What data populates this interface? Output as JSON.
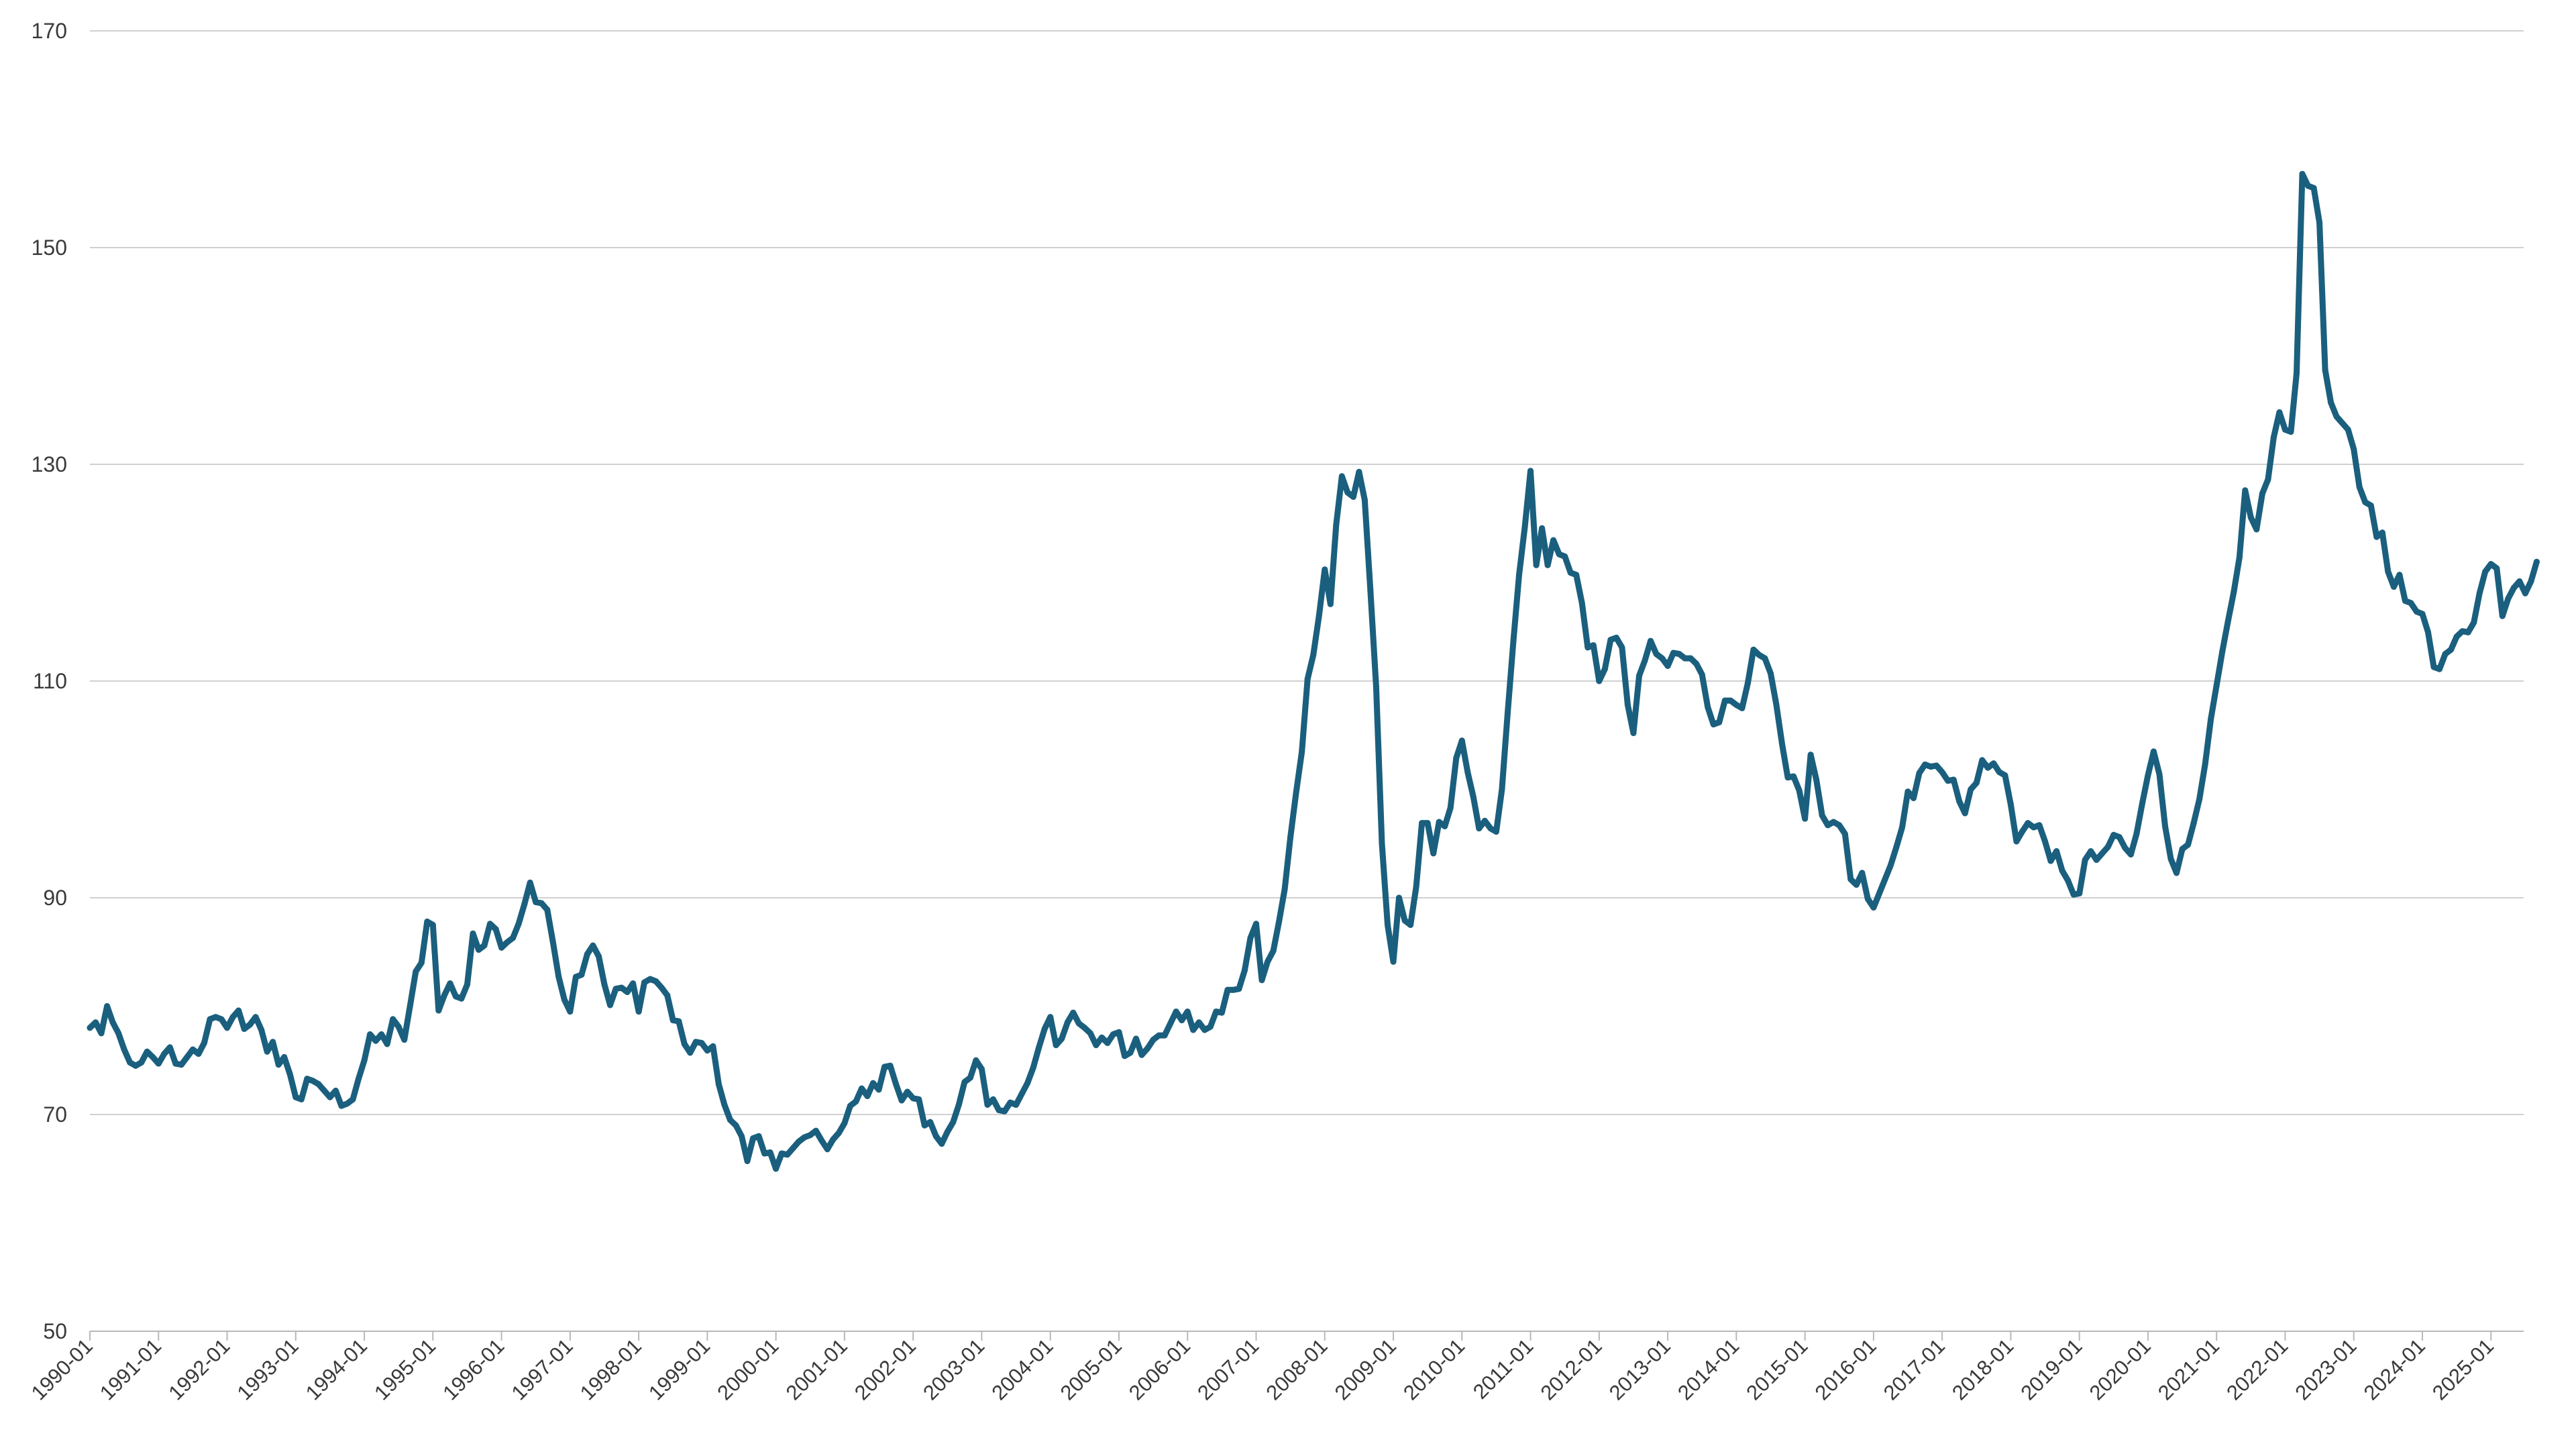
{
  "colors": {
    "series": "#1b5f7e",
    "grid": "#d0d0d0",
    "text": "#3a3a3a"
  },
  "chart_data": {
    "type": "line",
    "title": "",
    "xlabel": "",
    "ylabel": "",
    "ylim": [
      50,
      170
    ],
    "yticks": [
      50,
      70,
      90,
      110,
      130,
      150,
      170
    ],
    "grid": true,
    "legend": "none",
    "x_start": "1990-01",
    "x_frequency": "monthly",
    "xticks": [
      "1990-01",
      "1991-01",
      "1992-01",
      "1993-01",
      "1994-01",
      "1995-01",
      "1996-01",
      "1997-01",
      "1998-01",
      "1999-01",
      "2000-01",
      "2001-01",
      "2002-01",
      "2003-01",
      "2004-01",
      "2005-01",
      "2006-01",
      "2007-01",
      "2008-01",
      "2009-01",
      "2010-01",
      "2011-01",
      "2012-01",
      "2013-01",
      "2014-01",
      "2015-01",
      "2016-01",
      "2017-01",
      "2018-01",
      "2019-01",
      "2020-01",
      "2021-01",
      "2022-01",
      "2023-01",
      "2024-01",
      "2025-01"
    ],
    "series": [
      {
        "values": [
          78,
          78.5,
          77.5,
          80,
          78.5,
          77.5,
          76,
          74.8,
          74.5,
          74.8,
          75.8,
          75.3,
          74.7,
          75.6,
          76.2,
          74.7,
          74.6,
          75.3,
          76,
          75.6,
          76.6,
          78.8,
          79,
          78.8,
          78,
          79,
          79.6,
          77.9,
          78.3,
          79,
          77.8,
          75.8,
          76.7,
          74.6,
          75.3,
          73.7,
          71.6,
          71.4,
          73.3,
          73.1,
          72.8,
          72.2,
          71.6,
          72.2,
          70.8,
          71,
          71.4,
          73.3,
          75,
          77.4,
          76.8,
          77.4,
          76.5,
          78.8,
          78.1,
          76.9,
          80,
          83.2,
          84,
          87.8,
          87.5,
          79.6,
          81,
          82.1,
          80.9,
          80.7,
          82,
          86.7,
          85.2,
          85.6,
          87.6,
          87.1,
          85.4,
          85.9,
          86.3,
          87.6,
          89.4,
          91.4,
          89.6,
          89.5,
          88.9,
          85.9,
          82.7,
          80.6,
          79.5,
          82.7,
          82.9,
          84.8,
          85.6,
          84.6,
          82,
          80.1,
          81.6,
          81.7,
          81.3,
          82.1,
          79.5,
          82.2,
          82.5,
          82.3,
          81.7,
          81,
          78.7,
          78.6,
          76.5,
          75.7,
          76.7,
          76.6,
          75.9,
          76.3,
          72.8,
          70.9,
          69.5,
          69,
          68,
          65.7,
          67.8,
          68,
          66.4,
          66.5,
          65,
          66.4,
          66.3,
          66.9,
          67.5,
          67.9,
          68.1,
          68.5,
          67.6,
          66.8,
          67.7,
          68.3,
          69.2,
          70.8,
          71.2,
          72.4,
          71.7,
          72.9,
          72.3,
          74.4,
          74.5,
          72.8,
          71.3,
          72.1,
          71.5,
          71.4,
          69,
          69.3,
          68,
          67.3,
          68.4,
          69.3,
          70.9,
          73,
          73.4,
          75,
          74.2,
          70.9,
          71.4,
          70.4,
          70.3,
          71.1,
          70.9,
          71.9,
          72.9,
          74.3,
          76.2,
          77.9,
          79,
          76.4,
          77,
          78.5,
          79.4,
          78.4,
          78,
          77.5,
          76.4,
          77.1,
          76.6,
          77.4,
          77.6,
          75.4,
          75.7,
          77,
          75.5,
          76.1,
          76.9,
          77.3,
          77.3,
          78.4,
          79.5,
          78.7,
          79.5,
          77.8,
          78.5,
          77.8,
          78.1,
          79.5,
          79.4,
          81.5,
          81.5,
          81.6,
          83.3,
          86.3,
          87.6,
          82.4,
          84.1,
          85.1,
          87.8,
          90.8,
          95.6,
          99.7,
          103.5,
          110.2,
          112.4,
          116,
          120.3,
          117.1,
          124.4,
          128.9,
          127.4,
          127,
          129.3,
          126.7,
          118.3,
          109.5,
          95,
          87.5,
          84.1,
          90,
          87.9,
          87.5,
          91,
          96.9,
          96.9,
          94.1,
          97,
          96.6,
          98.3,
          102.9,
          104.5,
          101.6,
          99.3,
          96.4,
          97.1,
          96.4,
          96.1,
          100,
          107.1,
          113.7,
          119.8,
          124.2,
          129.4,
          120.7,
          124.1,
          120.7,
          123,
          121.7,
          121.5,
          120,
          119.8,
          117.2,
          113.1,
          113.3,
          110,
          111.1,
          113.8,
          114,
          113.1,
          107.8,
          105.2,
          110.5,
          111.9,
          113.7,
          112.5,
          112.1,
          111.4,
          112.6,
          112.5,
          112.1,
          112.1,
          111.6,
          110.6,
          107.6,
          106,
          106.2,
          108.2,
          108.2,
          107.8,
          107.5,
          109.8,
          112.9,
          112.4,
          112.1,
          110.7,
          107.8,
          104.2,
          101.1,
          101.2,
          99.9,
          97.3,
          103.2,
          100.9,
          97.6,
          96.7,
          97,
          96.7,
          95.9,
          91.7,
          91.2,
          92.3,
          89.9,
          89.1,
          90.4,
          91.7,
          93,
          94.7,
          96.5,
          99.8,
          99.2,
          101.5,
          102.3,
          102.1,
          102.2,
          101.6,
          100.8,
          100.9,
          98.9,
          97.8,
          100,
          100.6,
          102.7,
          102,
          102.4,
          101.6,
          101.3,
          98.6,
          95.2,
          96.1,
          96.9,
          96.5,
          96.7,
          95.2,
          93.4,
          94.3,
          92.5,
          91.6,
          90.3,
          90.4,
          93.5,
          94.3,
          93.5,
          94.1,
          94.7,
          95.8,
          95.6,
          94.6,
          94,
          95.9,
          98.7,
          101.3,
          103.5,
          101.4,
          96.6,
          93.6,
          92.3,
          94.5,
          94.9,
          96.9,
          99.1,
          102.3,
          106.5,
          109.6,
          112.7,
          115.5,
          118.2,
          121.4,
          127.6,
          125.1,
          124,
          127.3,
          128.6,
          132.5,
          134.8,
          133.2,
          133,
          138.4,
          156.8,
          155.7,
          155.5,
          152.3,
          138.7,
          135.7,
          134.4,
          133.8,
          133.2,
          131.4,
          127.9,
          126.5,
          126.2,
          123.3,
          123.7,
          120.1,
          118.7,
          119.8,
          117.4,
          117.2,
          116.4,
          116.2,
          114.5,
          111.3,
          111.1,
          112.5,
          112.9,
          114.1,
          114.6,
          114.5,
          115.4,
          118.1,
          120.1,
          120.8,
          120.4,
          116,
          117.6,
          118.6,
          119.2,
          118.1,
          119.2,
          121
        ]
      }
    ]
  }
}
